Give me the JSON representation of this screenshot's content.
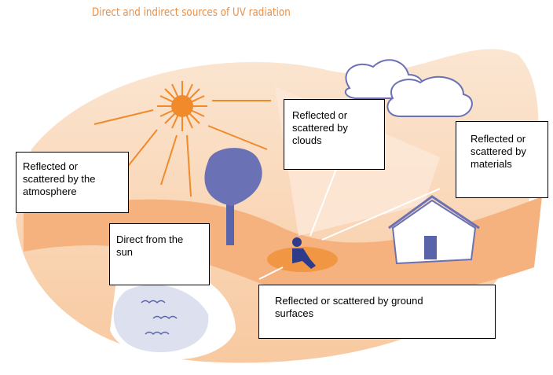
{
  "title": "Direct and indirect sources of UV radiation",
  "labels": [
    {
      "text": "Reflected or scattered by clouds"
    },
    {
      "text": "Reflected or scattered by materials"
    },
    {
      "text": "Reflected or scattered by the atmosphere"
    },
    {
      "text": "Direct from the sun"
    },
    {
      "text": "Reflected or scattered by ground surfaces"
    }
  ]
}
